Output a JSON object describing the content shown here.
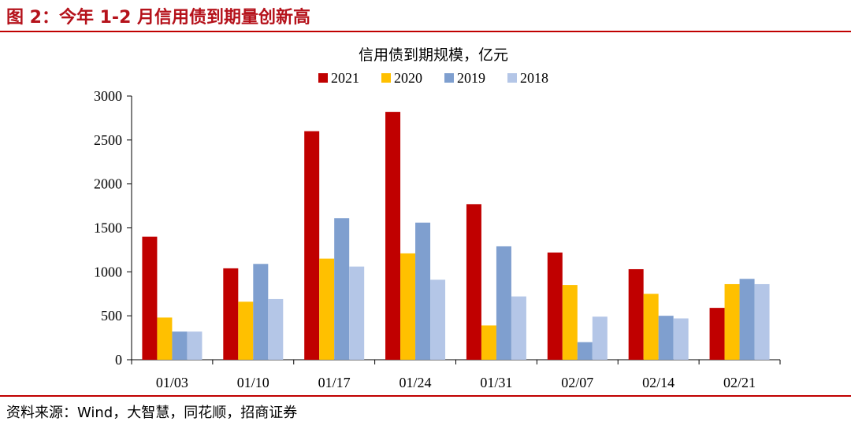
{
  "figure": {
    "caption": "图 2：今年 1-2 月信用债到期量创新高",
    "source": "资料来源：Wind，大智慧，同花顺，招商证券"
  },
  "chart_data": {
    "type": "bar",
    "title": "信用债到期规模，亿元",
    "xlabel": "",
    "ylabel": "",
    "categories": [
      "01/03",
      "01/10",
      "01/17",
      "01/24",
      "01/31",
      "02/07",
      "02/14",
      "02/21"
    ],
    "series": [
      {
        "name": "2021",
        "color": "#c00000",
        "values": [
          1400,
          1040,
          2600,
          2820,
          1770,
          1220,
          1030,
          590
        ]
      },
      {
        "name": "2020",
        "color": "#ffc000",
        "values": [
          480,
          660,
          1150,
          1210,
          390,
          850,
          750,
          860
        ]
      },
      {
        "name": "2019",
        "color": "#7f9fcf",
        "values": [
          320,
          1090,
          1610,
          1560,
          1290,
          200,
          500,
          920
        ]
      },
      {
        "name": "2018",
        "color": "#b4c6e7",
        "values": [
          320,
          690,
          1060,
          910,
          720,
          490,
          470,
          860
        ]
      }
    ],
    "ylim": [
      0,
      3000
    ],
    "yticks": [
      0,
      500,
      1000,
      1500,
      2000,
      2500,
      3000
    ],
    "grid": false,
    "legend": "top-center"
  }
}
